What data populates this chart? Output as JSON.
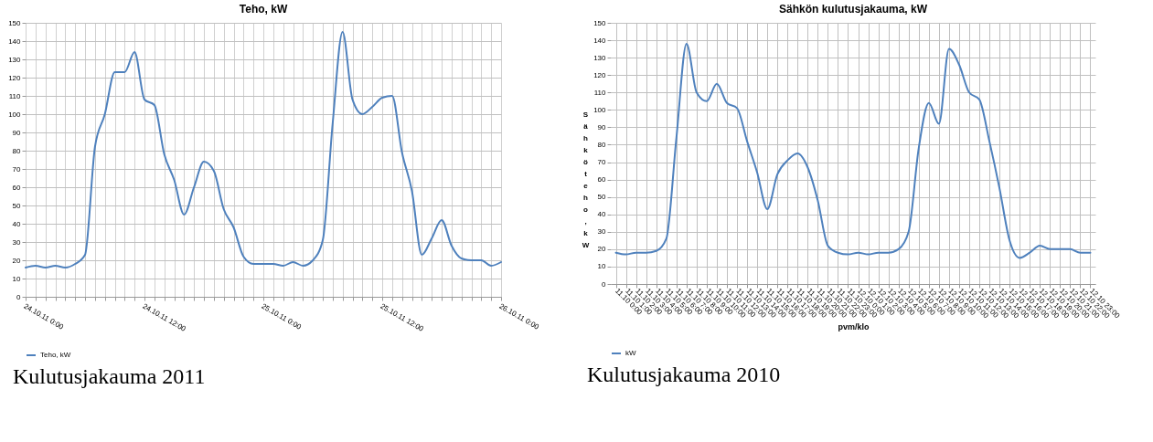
{
  "chart_data": [
    {
      "type": "line",
      "title": "Teho, kW",
      "x": [
        "2011-10-24T00:00",
        "2011-10-24T01:00",
        "2011-10-24T02:00",
        "2011-10-24T03:00",
        "2011-10-24T04:00",
        "2011-10-24T05:00",
        "2011-10-24T06:00",
        "2011-10-24T07:00",
        "2011-10-24T08:00",
        "2011-10-24T09:00",
        "2011-10-24T10:00",
        "2011-10-24T11:00",
        "2011-10-24T12:00",
        "2011-10-24T13:00",
        "2011-10-24T14:00",
        "2011-10-24T15:00",
        "2011-10-24T16:00",
        "2011-10-24T17:00",
        "2011-10-24T18:00",
        "2011-10-24T19:00",
        "2011-10-24T20:00",
        "2011-10-24T21:00",
        "2011-10-24T22:00",
        "2011-10-24T23:00",
        "2011-10-25T00:00",
        "2011-10-25T01:00",
        "2011-10-25T02:00",
        "2011-10-25T03:00",
        "2011-10-25T04:00",
        "2011-10-25T05:00",
        "2011-10-25T06:00",
        "2011-10-25T07:00",
        "2011-10-25T08:00",
        "2011-10-25T09:00",
        "2011-10-25T10:00",
        "2011-10-25T11:00",
        "2011-10-25T12:00",
        "2011-10-25T13:00",
        "2011-10-25T14:00",
        "2011-10-25T15:00",
        "2011-10-25T16:00",
        "2011-10-25T17:00",
        "2011-10-25T18:00",
        "2011-10-25T19:00",
        "2011-10-25T20:00",
        "2011-10-25T21:00",
        "2011-10-25T22:00",
        "2011-10-25T23:00",
        "2011-10-26T00:00"
      ],
      "series": [
        {
          "name": "Teho, kW",
          "color": "#4f81bd",
          "values": [
            16,
            17,
            16,
            17,
            16,
            18,
            23,
            82,
            100,
            123,
            123,
            134,
            108,
            105,
            78,
            64,
            45,
            60,
            74,
            69,
            48,
            38,
            22,
            18,
            18,
            18,
            17,
            19,
            17,
            20,
            31,
            95,
            145,
            108,
            100,
            104,
            109,
            110,
            79,
            58,
            23,
            32,
            42,
            28,
            21,
            20,
            20,
            17,
            19
          ]
        }
      ],
      "xlim": [
        "2011-10-24T00:00",
        "2011-10-26T00:00"
      ],
      "xticks": [
        {
          "value": "2011-10-24T00:00",
          "label": "24.10.11 0:00"
        },
        {
          "value": "2011-10-24T01:00",
          "label": null
        },
        {
          "value": "2011-10-24T02:00",
          "label": null
        },
        {
          "value": "2011-10-24T03:00",
          "label": null
        },
        {
          "value": "2011-10-24T04:00",
          "label": null
        },
        {
          "value": "2011-10-24T05:00",
          "label": null
        },
        {
          "value": "2011-10-24T06:00",
          "label": null
        },
        {
          "value": "2011-10-24T07:00",
          "label": null
        },
        {
          "value": "2011-10-24T08:00",
          "label": null
        },
        {
          "value": "2011-10-24T09:00",
          "label": null
        },
        {
          "value": "2011-10-24T10:00",
          "label": null
        },
        {
          "value": "2011-10-24T11:00",
          "label": null
        },
        {
          "value": "2011-10-24T12:00",
          "label": "24.10.11 12:00"
        },
        {
          "value": "2011-10-24T13:00",
          "label": null
        },
        {
          "value": "2011-10-24T14:00",
          "label": null
        },
        {
          "value": "2011-10-24T15:00",
          "label": null
        },
        {
          "value": "2011-10-24T16:00",
          "label": null
        },
        {
          "value": "2011-10-24T17:00",
          "label": null
        },
        {
          "value": "2011-10-24T18:00",
          "label": null
        },
        {
          "value": "2011-10-24T19:00",
          "label": null
        },
        {
          "value": "2011-10-24T20:00",
          "label": null
        },
        {
          "value": "2011-10-24T21:00",
          "label": null
        },
        {
          "value": "2011-10-24T22:00",
          "label": null
        },
        {
          "value": "2011-10-24T23:00",
          "label": null
        },
        {
          "value": "2011-10-25T00:00",
          "label": "25.10.11 0:00"
        },
        {
          "value": "2011-10-25T01:00",
          "label": null
        },
        {
          "value": "2011-10-25T02:00",
          "label": null
        },
        {
          "value": "2011-10-25T03:00",
          "label": null
        },
        {
          "value": "2011-10-25T04:00",
          "label": null
        },
        {
          "value": "2011-10-25T05:00",
          "label": null
        },
        {
          "value": "2011-10-25T06:00",
          "label": null
        },
        {
          "value": "2011-10-25T07:00",
          "label": null
        },
        {
          "value": "2011-10-25T08:00",
          "label": null
        },
        {
          "value": "2011-10-25T09:00",
          "label": null
        },
        {
          "value": "2011-10-25T10:00",
          "label": null
        },
        {
          "value": "2011-10-25T11:00",
          "label": null
        },
        {
          "value": "2011-10-25T12:00",
          "label": "25.10.11 12:00"
        },
        {
          "value": "2011-10-25T13:00",
          "label": null
        },
        {
          "value": "2011-10-25T14:00",
          "label": null
        },
        {
          "value": "2011-10-25T15:00",
          "label": null
        },
        {
          "value": "2011-10-25T16:00",
          "label": null
        },
        {
          "value": "2011-10-25T17:00",
          "label": null
        },
        {
          "value": "2011-10-25T18:00",
          "label": null
        },
        {
          "value": "2011-10-25T19:00",
          "label": null
        },
        {
          "value": "2011-10-25T20:00",
          "label": null
        },
        {
          "value": "2011-10-25T21:00",
          "label": null
        },
        {
          "value": "2011-10-25T22:00",
          "label": null
        },
        {
          "value": "2011-10-25T23:00",
          "label": null
        },
        {
          "value": "2011-10-26T00:00",
          "label": "26.10.11 0:00"
        }
      ],
      "ylim": [
        0,
        150
      ],
      "yticks": [
        0,
        10,
        20,
        30,
        40,
        50,
        60,
        70,
        80,
        90,
        100,
        110,
        120,
        130,
        140,
        150
      ],
      "grid": true,
      "legend": "bottom",
      "annotations": [
        "Kulutusjakauma 2011"
      ]
    },
    {
      "type": "line",
      "title": "Sähkön kulutusjakauma, kW",
      "xlabel": "pvm/klo",
      "ylabel": "Sähköteho, kW",
      "categories": [
        "11.10 0:00",
        "11.10 1:00",
        "11.10 2:00",
        "11.10 3:00",
        "11.10 4:00",
        "11.10 5:00",
        "11.10 6:00",
        "11.10 7:00",
        "11.10 8:00",
        "11.10 9:00",
        "11.10 10:00",
        "11.10 11:00",
        "11.10 12:00",
        "11.10 13:00",
        "11.10 14:00",
        "11.10 15:00",
        "11.10 16:00",
        "11.10 17:00",
        "11.10 18:00",
        "11.10 19:00",
        "11.10 20:00",
        "11.10 21:00",
        "11.10 22:00",
        "11.10 23:00",
        "12.10 0:00",
        "12.10 1:00",
        "12.10 2:00",
        "12.10 3:00",
        "12.10 4:00",
        "12.10 5:00",
        "12.10 6:00",
        "12.10 7:00",
        "12.10 8:00",
        "12.10 9:00",
        "12.10 10:00",
        "12.10 11:00",
        "12.10 12:00",
        "12.10 13:00",
        "12.10 14:00",
        "12.10 15:00",
        "12.10 16:00",
        "12.10 17:00",
        "12.10 18:00",
        "12.10 19:00",
        "12.10 20:00",
        "12.10 21:00",
        "12.10 22:00",
        "12.10 23:00"
      ],
      "series": [
        {
          "name": "kW",
          "color": "#4f81bd",
          "values": [
            18,
            17,
            18,
            18,
            19,
            26,
            84,
            138,
            110,
            105,
            115,
            104,
            101,
            82,
            64,
            43,
            63,
            71,
            75,
            67,
            48,
            22,
            18,
            17,
            18,
            17,
            18,
            18,
            20,
            30,
            78,
            104,
            92,
            135,
            126,
            110,
            106,
            82,
            55,
            25,
            15,
            18,
            22,
            20,
            20,
            20,
            18,
            18
          ]
        }
      ],
      "ylim": [
        0,
        150
      ],
      "yticks": [
        0,
        10,
        20,
        30,
        40,
        50,
        60,
        70,
        80,
        90,
        100,
        110,
        120,
        130,
        140,
        150
      ],
      "grid": true,
      "legend": "bottom",
      "annotations": [
        "Kulutusjakauma 2010"
      ]
    }
  ]
}
